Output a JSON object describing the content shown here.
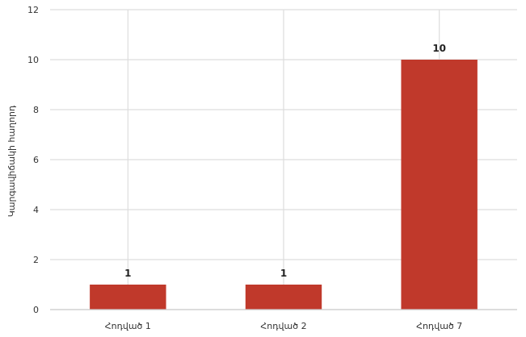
{
  "chart_data": {
    "type": "bar",
    "title": "",
    "xlabel": "",
    "ylabel": "Կարգավիճակի հաղորդ",
    "categories": [
      "Հոդված 1",
      "Հոդված 2",
      "Հոդված 7"
    ],
    "values": [
      1,
      1,
      10
    ],
    "data_labels": [
      "1",
      "1",
      "10"
    ],
    "ylim": [
      0,
      12
    ],
    "yticks": [
      0,
      2,
      4,
      6,
      8,
      10,
      12
    ],
    "grid": true,
    "legend": "none",
    "colors": {
      "bar": "#c0392b",
      "grid": "#dddddd",
      "axis": "#cccccc"
    }
  }
}
